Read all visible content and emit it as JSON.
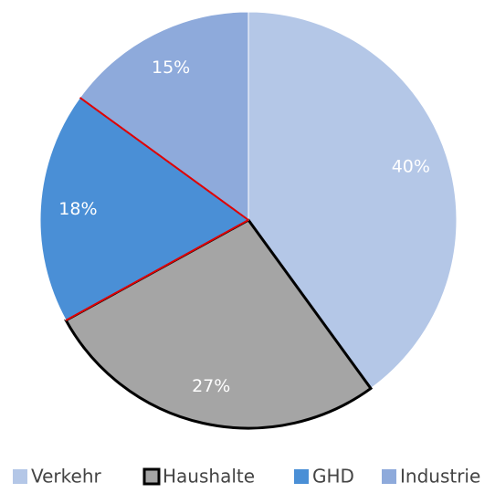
{
  "chart_data": {
    "type": "pie",
    "categories": [
      "Verkehr",
      "Haushalte",
      "GHD",
      "Industrie"
    ],
    "values": [
      40,
      27,
      18,
      15
    ],
    "value_labels": [
      "40%",
      "27%",
      "18%",
      "15%"
    ],
    "colors": [
      "#b4c7e7",
      "#a5a5a5",
      "#4a8fd6",
      "#8eaadb"
    ]
  }
}
